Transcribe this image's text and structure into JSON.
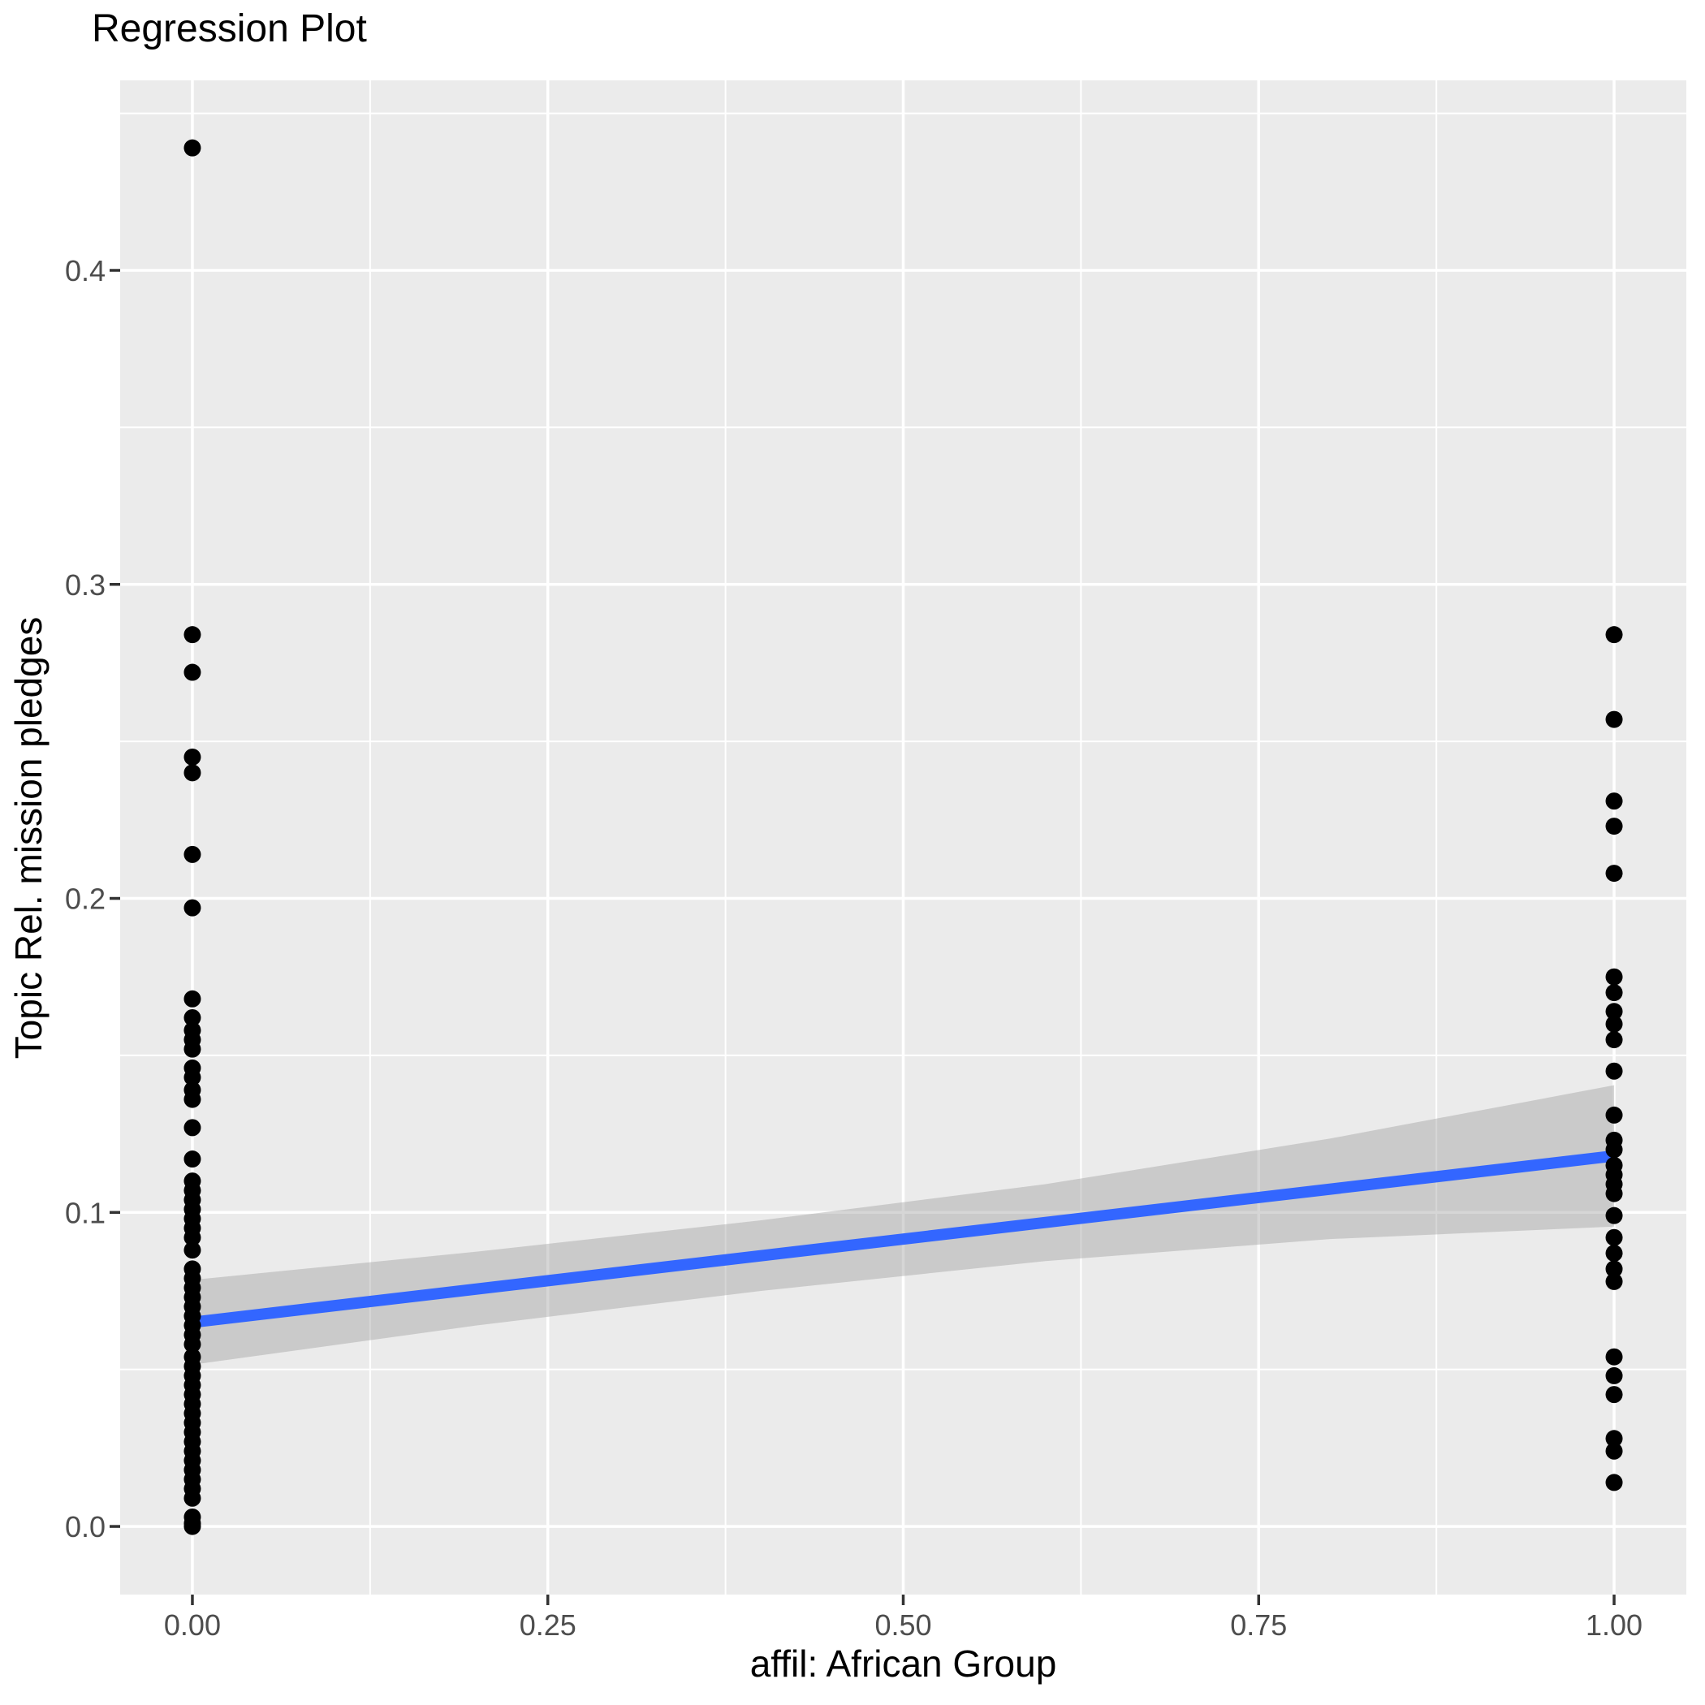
{
  "title": "Regression Plot",
  "chart_data": {
    "type": "scatter",
    "title": "Regression Plot",
    "xlabel": "affil: African Group",
    "ylabel": "Topic Rel. mission pledges",
    "x_ticks": [
      "0.00",
      "0.25",
      "0.50",
      "0.75",
      "1.00"
    ],
    "x_tick_values": [
      0,
      0.25,
      0.5,
      0.75,
      1.0
    ],
    "y_ticks": [
      "0.0",
      "0.1",
      "0.2",
      "0.3",
      "0.4"
    ],
    "y_tick_values": [
      0,
      0.1,
      0.2,
      0.3,
      0.4
    ],
    "x_minor_gridlines": [
      0.125,
      0.375,
      0.625,
      0.875
    ],
    "y_minor_gridlines": [
      0.05,
      0.15,
      0.25,
      0.35,
      0.45
    ],
    "xlim": [
      -0.0508,
      1.0508
    ],
    "ylim": [
      -0.0217,
      0.4605
    ],
    "grid": true,
    "legend": false,
    "series": [
      {
        "name": "observations at affil = 0",
        "x": 0,
        "y": [
          0.439,
          0.284,
          0.272,
          0.245,
          0.24,
          0.214,
          0.197,
          0.168,
          0.162,
          0.158,
          0.155,
          0.152,
          0.146,
          0.143,
          0.139,
          0.136,
          0.127,
          0.117,
          0.11,
          0.107,
          0.104,
          0.101,
          0.098,
          0.095,
          0.092,
          0.088,
          0.082,
          0.079,
          0.076,
          0.073,
          0.07,
          0.067,
          0.064,
          0.061,
          0.058,
          0.054,
          0.051,
          0.048,
          0.045,
          0.042,
          0.039,
          0.036,
          0.033,
          0.03,
          0.027,
          0.024,
          0.021,
          0.018,
          0.015,
          0.012,
          0.009,
          0.003,
          0.001,
          0.0
        ]
      },
      {
        "name": "observations at affil = 1",
        "x": 1,
        "y": [
          0.284,
          0.257,
          0.231,
          0.223,
          0.208,
          0.175,
          0.17,
          0.164,
          0.16,
          0.155,
          0.145,
          0.131,
          0.123,
          0.12,
          0.115,
          0.112,
          0.109,
          0.106,
          0.099,
          0.092,
          0.087,
          0.082,
          0.078,
          0.054,
          0.048,
          0.042,
          0.028,
          0.024,
          0.014
        ]
      }
    ],
    "regression_line": {
      "x": [
        0,
        1
      ],
      "y": [
        0.065,
        0.118
      ]
    },
    "confidence_band": {
      "x": [
        0.0,
        0.2,
        0.4,
        0.6,
        0.8,
        1.0
      ],
      "upper": [
        0.0785,
        0.0875,
        0.0975,
        0.109,
        0.1235,
        0.1405
      ],
      "lower": [
        0.0515,
        0.064,
        0.075,
        0.0845,
        0.0915,
        0.0955
      ]
    },
    "colors": {
      "panel_background": "#EBEBEB",
      "gridline": "#FFFFFF",
      "confidence_band": "#999999",
      "confidence_band_opacity": 0.4,
      "regression_line": "#3366FF",
      "points": "#000000",
      "tick_label": "#4D4D4D",
      "tick_mark": "#333333",
      "axis_title": "#000000"
    }
  }
}
